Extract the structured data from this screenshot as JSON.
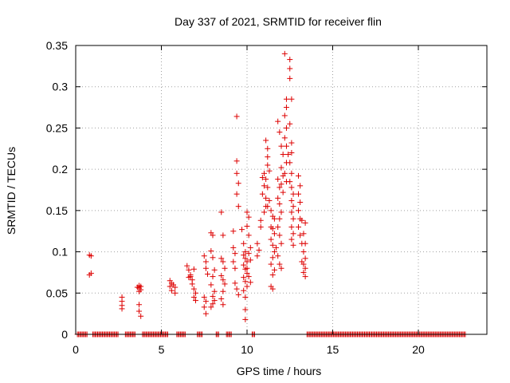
{
  "chart_data": {
    "type": "scatter",
    "title": "Day 337 of 2021, SRMTID for receiver flin",
    "xlabel": "GPS time / hours",
    "ylabel": "SRMTID / TECUs",
    "xlim": [
      0,
      24
    ],
    "ylim": [
      0,
      0.35
    ],
    "xticks": [
      0,
      5,
      10,
      15,
      20
    ],
    "yticks": [
      0,
      0.05,
      0.1,
      0.15,
      0.2,
      0.25,
      0.3,
      0.35
    ],
    "grid": true,
    "marker": "+",
    "color": "#dd0000",
    "series": [
      {
        "values": [
          [
            0.8,
            0.096
          ],
          [
            0.9,
            0.095
          ],
          [
            0.8,
            0.072
          ],
          [
            0.9,
            0.074
          ],
          [
            2.7,
            0.045
          ],
          [
            2.7,
            0.04
          ],
          [
            2.7,
            0.035
          ],
          [
            2.7,
            0.031
          ],
          [
            3.7,
            0.059
          ],
          [
            3.7,
            0.056
          ],
          [
            3.8,
            0.054
          ],
          [
            3.7,
            0.052
          ],
          [
            3.8,
            0.058
          ],
          [
            3.6,
            0.057
          ],
          [
            3.7,
            0.036
          ],
          [
            3.7,
            0.028
          ],
          [
            3.8,
            0.022
          ],
          [
            5.5,
            0.065
          ],
          [
            5.6,
            0.062
          ],
          [
            5.5,
            0.058
          ],
          [
            5.6,
            0.053
          ],
          [
            5.7,
            0.06
          ],
          [
            5.8,
            0.057
          ],
          [
            5.8,
            0.05
          ],
          [
            6.5,
            0.083
          ],
          [
            6.6,
            0.078
          ],
          [
            6.7,
            0.072
          ],
          [
            6.6,
            0.069
          ],
          [
            6.8,
            0.066
          ],
          [
            6.9,
            0.079
          ],
          [
            6.8,
            0.061
          ],
          [
            6.9,
            0.055
          ],
          [
            7.0,
            0.05
          ],
          [
            6.9,
            0.045
          ],
          [
            7.0,
            0.041
          ],
          [
            6.7,
            0.07
          ],
          [
            7.5,
            0.095
          ],
          [
            7.6,
            0.088
          ],
          [
            7.6,
            0.08
          ],
          [
            7.7,
            0.073
          ],
          [
            7.5,
            0.045
          ],
          [
            7.6,
            0.04
          ],
          [
            7.5,
            0.033
          ],
          [
            7.6,
            0.025
          ],
          [
            7.9,
            0.123
          ],
          [
            8.0,
            0.12
          ],
          [
            7.9,
            0.101
          ],
          [
            8.0,
            0.093
          ],
          [
            8.1,
            0.078
          ],
          [
            8.0,
            0.07
          ],
          [
            7.9,
            0.06
          ],
          [
            8.1,
            0.052
          ],
          [
            8.0,
            0.046
          ],
          [
            8.1,
            0.041
          ],
          [
            8.0,
            0.037
          ],
          [
            7.9,
            0.033
          ],
          [
            8.5,
            0.148
          ],
          [
            8.6,
            0.12
          ],
          [
            8.5,
            0.092
          ],
          [
            8.6,
            0.088
          ],
          [
            8.7,
            0.08
          ],
          [
            8.5,
            0.071
          ],
          [
            8.6,
            0.066
          ],
          [
            8.7,
            0.061
          ],
          [
            8.6,
            0.052
          ],
          [
            8.5,
            0.043
          ],
          [
            8.6,
            0.036
          ],
          [
            9.2,
            0.125
          ],
          [
            9.2,
            0.105
          ],
          [
            9.3,
            0.098
          ],
          [
            9.2,
            0.088
          ],
          [
            9.3,
            0.08
          ],
          [
            9.4,
            0.264
          ],
          [
            9.4,
            0.21
          ],
          [
            9.4,
            0.195
          ],
          [
            9.5,
            0.183
          ],
          [
            9.4,
            0.17
          ],
          [
            9.5,
            0.155
          ],
          [
            9.3,
            0.062
          ],
          [
            9.4,
            0.055
          ],
          [
            9.5,
            0.048
          ],
          [
            9.7,
            0.127
          ],
          [
            9.8,
            0.11
          ],
          [
            9.9,
            0.1
          ],
          [
            9.8,
            0.096
          ],
          [
            9.9,
            0.092
          ],
          [
            10.0,
            0.088
          ],
          [
            9.8,
            0.084
          ],
          [
            9.9,
            0.079
          ],
          [
            10.0,
            0.074
          ],
          [
            9.8,
            0.069
          ],
          [
            9.9,
            0.064
          ],
          [
            10.0,
            0.058
          ],
          [
            9.8,
            0.053
          ],
          [
            9.9,
            0.045
          ],
          [
            9.9,
            0.03
          ],
          [
            9.9,
            0.018
          ],
          [
            10.0,
            0.148
          ],
          [
            10.1,
            0.142
          ],
          [
            10.0,
            0.131
          ],
          [
            10.1,
            0.12
          ],
          [
            10.2,
            0.105
          ],
          [
            10.1,
            0.098
          ],
          [
            10.2,
            0.09
          ],
          [
            10.0,
            0.08
          ],
          [
            10.1,
            0.07
          ],
          [
            10.2,
            0.063
          ],
          [
            10.6,
            0.11
          ],
          [
            10.7,
            0.102
          ],
          [
            10.6,
            0.095
          ],
          [
            10.8,
            0.13
          ],
          [
            10.8,
            0.138
          ],
          [
            10.9,
            0.19
          ],
          [
            11.0,
            0.195
          ],
          [
            11.0,
            0.18
          ],
          [
            10.9,
            0.17
          ],
          [
            11.1,
            0.165
          ],
          [
            11.1,
            0.155
          ],
          [
            11.0,
            0.148
          ],
          [
            11.2,
            0.225
          ],
          [
            11.1,
            0.235
          ],
          [
            11.2,
            0.215
          ],
          [
            11.2,
            0.205
          ],
          [
            11.3,
            0.198
          ],
          [
            11.1,
            0.188
          ],
          [
            11.2,
            0.178
          ],
          [
            11.3,
            0.162
          ],
          [
            11.2,
            0.155
          ],
          [
            11.4,
            0.15
          ],
          [
            11.5,
            0.143
          ],
          [
            11.4,
            0.13
          ],
          [
            11.5,
            0.128
          ],
          [
            11.6,
            0.122
          ],
          [
            11.4,
            0.115
          ],
          [
            11.5,
            0.108
          ],
          [
            11.6,
            0.1
          ],
          [
            11.5,
            0.093
          ],
          [
            11.4,
            0.085
          ],
          [
            11.6,
            0.078
          ],
          [
            11.5,
            0.072
          ],
          [
            11.4,
            0.058
          ],
          [
            11.5,
            0.055
          ],
          [
            11.6,
            0.14
          ],
          [
            11.7,
            0.105
          ],
          [
            11.8,
            0.188
          ],
          [
            11.9,
            0.178
          ],
          [
            11.8,
            0.165
          ],
          [
            11.9,
            0.158
          ],
          [
            12.0,
            0.148
          ],
          [
            11.9,
            0.14
          ],
          [
            11.8,
            0.13
          ],
          [
            11.9,
            0.12
          ],
          [
            12.0,
            0.11
          ],
          [
            11.8,
            0.095
          ],
          [
            11.9,
            0.085
          ],
          [
            12.0,
            0.08
          ],
          [
            11.8,
            0.258
          ],
          [
            11.9,
            0.245
          ],
          [
            12.0,
            0.228
          ],
          [
            12.1,
            0.218
          ],
          [
            12.0,
            0.202
          ],
          [
            12.1,
            0.192
          ],
          [
            12.0,
            0.182
          ],
          [
            12.1,
            0.172
          ],
          [
            12.2,
            0.34
          ],
          [
            12.3,
            0.285
          ],
          [
            12.3,
            0.275
          ],
          [
            12.2,
            0.265
          ],
          [
            12.3,
            0.25
          ],
          [
            12.2,
            0.238
          ],
          [
            12.3,
            0.228
          ],
          [
            12.4,
            0.218
          ],
          [
            12.3,
            0.208
          ],
          [
            12.2,
            0.195
          ],
          [
            12.3,
            0.185
          ],
          [
            12.5,
            0.333
          ],
          [
            12.5,
            0.322
          ],
          [
            12.5,
            0.31
          ],
          [
            12.6,
            0.285
          ],
          [
            12.5,
            0.255
          ],
          [
            12.6,
            0.232
          ],
          [
            12.6,
            0.22
          ],
          [
            12.5,
            0.208
          ],
          [
            12.6,
            0.195
          ],
          [
            12.5,
            0.185
          ],
          [
            12.6,
            0.178
          ],
          [
            12.7,
            0.17
          ],
          [
            12.6,
            0.162
          ],
          [
            12.7,
            0.155
          ],
          [
            12.6,
            0.148
          ],
          [
            12.7,
            0.14
          ],
          [
            12.6,
            0.13
          ],
          [
            12.7,
            0.122
          ],
          [
            12.6,
            0.115
          ],
          [
            12.7,
            0.108
          ],
          [
            13.0,
            0.192
          ],
          [
            13.1,
            0.18
          ],
          [
            13.0,
            0.17
          ],
          [
            13.1,
            0.16
          ],
          [
            13.0,
            0.15
          ],
          [
            13.1,
            0.14
          ],
          [
            13.0,
            0.13
          ],
          [
            13.1,
            0.12
          ],
          [
            13.2,
            0.11
          ],
          [
            13.2,
            0.138
          ],
          [
            13.4,
            0.135
          ],
          [
            13.3,
            0.122
          ],
          [
            13.4,
            0.11
          ],
          [
            13.3,
            0.1
          ],
          [
            13.4,
            0.092
          ],
          [
            13.3,
            0.085
          ],
          [
            13.4,
            0.08
          ],
          [
            13.3,
            0.075
          ],
          [
            13.4,
            0.07
          ],
          [
            13.2,
            0.088
          ]
        ]
      }
    ]
  }
}
